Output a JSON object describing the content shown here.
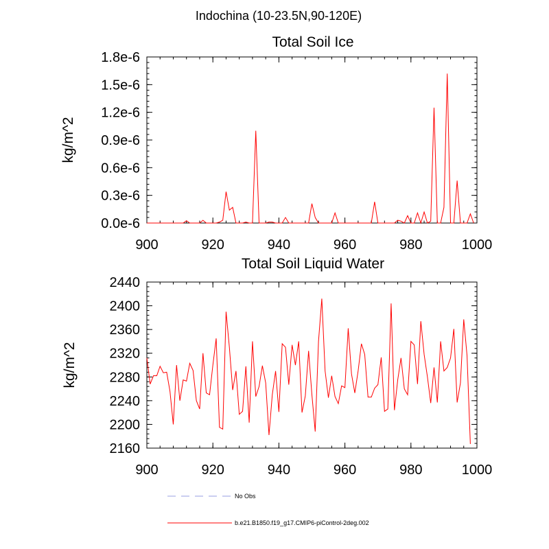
{
  "figure": {
    "title": "Indochina (10-23.5N,90-120E)"
  },
  "chart_data": [
    {
      "type": "line",
      "title": "Total Soil Ice",
      "xlabel": "",
      "ylabel": "kg/m^2",
      "xlim": [
        900,
        1000
      ],
      "ylim": [
        0.0,
        1.8e-06
      ],
      "xticks": [
        900,
        920,
        940,
        960,
        980,
        1000
      ],
      "xtick_labels": [
        "900",
        "920",
        "940",
        "960",
        "980",
        "1000"
      ],
      "yticks": [
        0.0,
        3e-07,
        6e-07,
        9e-07,
        1.2e-06,
        1.5e-06,
        1.8e-06
      ],
      "ytick_labels": [
        "0.0e-6",
        "0.3e-6",
        "0.6e-6",
        "0.9e-6",
        "1.2e-6",
        "1.5e-6",
        "1.8e-6"
      ],
      "series": [
        {
          "name": "b.e21.B1850.f19_g17.CMIP6-piControl-2deg.002",
          "color": "#ff0000",
          "x_start": 900,
          "x_step": 1,
          "values": [
            0,
            0,
            0,
            0,
            0,
            0,
            0,
            0,
            0,
            0,
            0,
            0,
            2.5e-08,
            0,
            0,
            0,
            0,
            3e-08,
            0,
            0,
            0,
            0,
            1e-08,
            3e-08,
            3.4e-07,
            1.4e-07,
            1.7e-07,
            0,
            0,
            0,
            1e-08,
            0,
            0,
            1e-06,
            0,
            0,
            0,
            1e-08,
            1e-08,
            0,
            0,
            0,
            6e-08,
            0,
            0,
            0,
            0,
            0,
            0,
            0,
            2.1e-07,
            6e-08,
            0,
            0,
            0,
            0,
            0,
            1.1e-07,
            0,
            0,
            0,
            0,
            0,
            0,
            0,
            0,
            0,
            0,
            0,
            2.3e-07,
            0,
            0,
            0,
            0,
            0,
            0,
            3e-08,
            2e-08,
            0,
            8e-08,
            0,
            0,
            1.1e-07,
            0,
            1.2e-07,
            0,
            2e-08,
            1.25e-06,
            0,
            0,
            1.7e-07,
            1.62e-06,
            0,
            0,
            4.6e-07,
            0,
            0,
            0,
            1e-07,
            0
          ]
        }
      ]
    },
    {
      "type": "line",
      "title": "Total Soil Liquid Water",
      "xlabel": "",
      "ylabel": "kg/m^2",
      "xlim": [
        900,
        1000
      ],
      "ylim": [
        2160,
        2440
      ],
      "xticks": [
        900,
        920,
        940,
        960,
        980,
        1000
      ],
      "xtick_labels": [
        "900",
        "920",
        "940",
        "960",
        "980",
        "1000"
      ],
      "yticks": [
        2160,
        2200,
        2240,
        2280,
        2320,
        2360,
        2400,
        2440
      ],
      "ytick_labels": [
        "2160",
        "2200",
        "2240",
        "2280",
        "2320",
        "2360",
        "2400",
        "2440"
      ],
      "series": [
        {
          "name": "b.e21.B1850.f19_g17.CMIP6-piControl-2deg.002",
          "color": "#ff0000",
          "x_start": 900,
          "x_step": 1,
          "values": [
            2312,
            2268,
            2282,
            2282,
            2298,
            2287,
            2288,
            2256,
            2200,
            2300,
            2240,
            2275,
            2273,
            2303,
            2291,
            2240,
            2226,
            2320,
            2253,
            2250,
            2300,
            2345,
            2195,
            2192,
            2390,
            2330,
            2258,
            2290,
            2217,
            2222,
            2298,
            2203,
            2340,
            2247,
            2264,
            2299,
            2270,
            2182,
            2250,
            2290,
            2221,
            2336,
            2330,
            2267,
            2334,
            2300,
            2340,
            2220,
            2248,
            2324,
            2250,
            2188,
            2340,
            2412,
            2290,
            2245,
            2282,
            2247,
            2235,
            2265,
            2262,
            2362,
            2285,
            2253,
            2290,
            2336,
            2318,
            2246,
            2246,
            2261,
            2267,
            2313,
            2222,
            2226,
            2404,
            2224,
            2275,
            2312,
            2260,
            2250,
            2340,
            2334,
            2268,
            2374,
            2318,
            2280,
            2236,
            2296,
            2237,
            2340,
            2290,
            2296,
            2312,
            2361,
            2237,
            2270,
            2377,
            2316,
            2167
          ]
        }
      ]
    }
  ],
  "legend": {
    "items": [
      {
        "label": "No Obs",
        "style": "dashed",
        "color": "#aab0e6"
      },
      {
        "label": "b.e21.B1850.f19_g17.CMIP6-piControl-2deg.002",
        "style": "solid",
        "color": "#ff0000"
      }
    ]
  }
}
